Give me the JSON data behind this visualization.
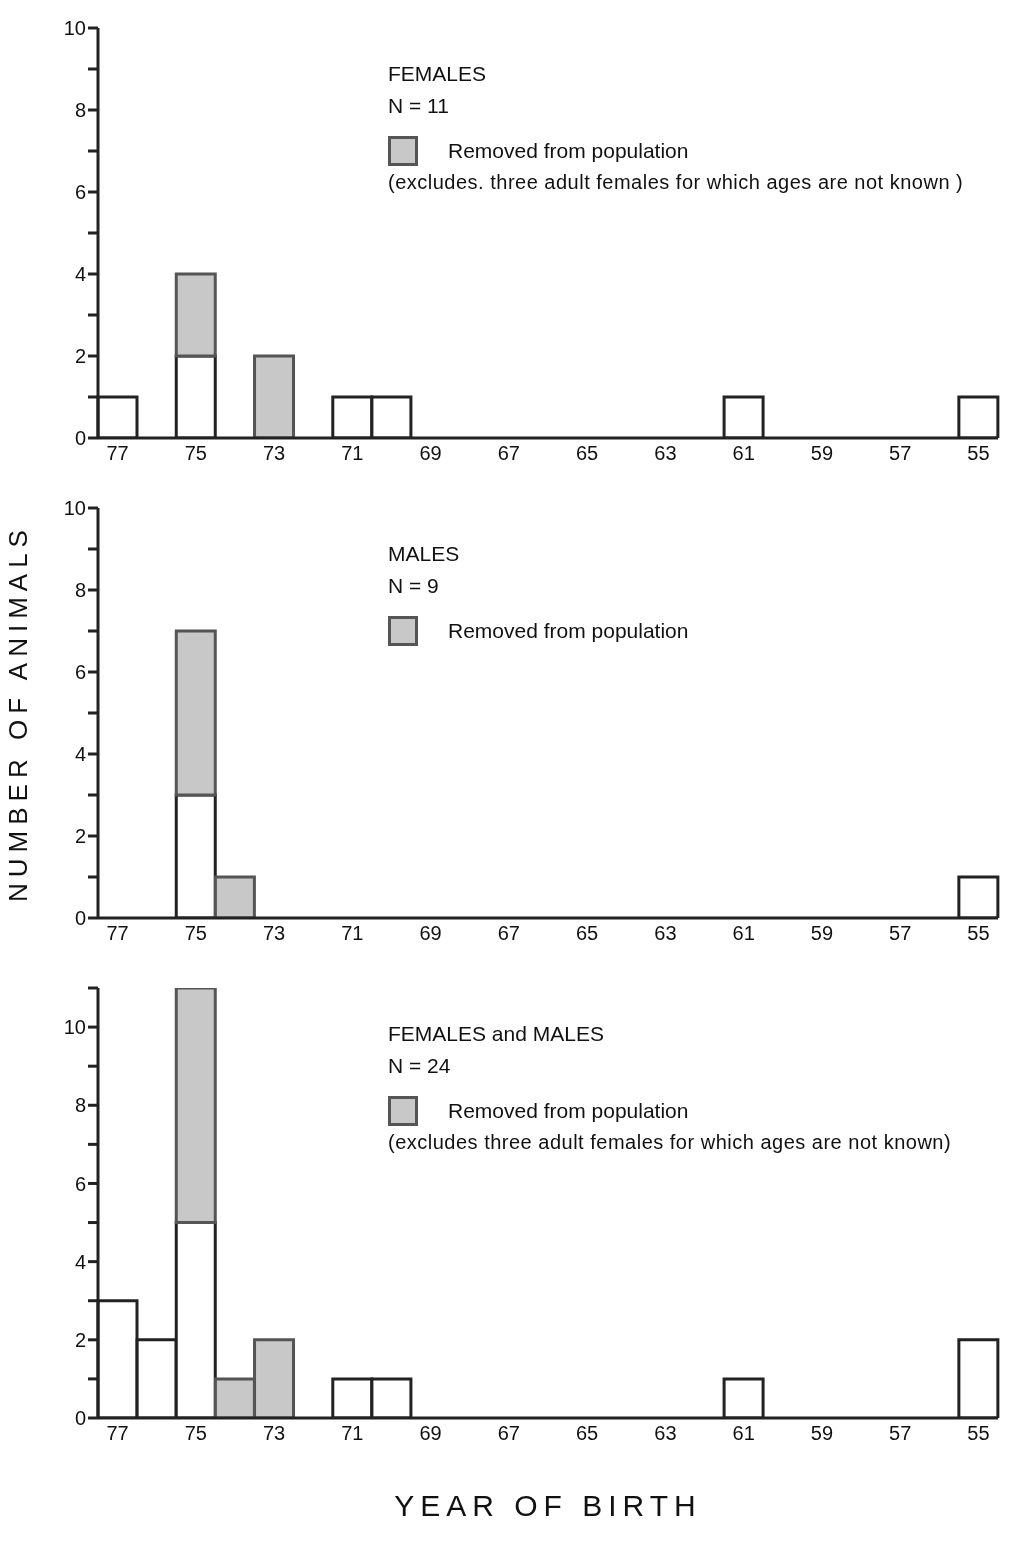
{
  "chart_data": [
    {
      "type": "bar",
      "title": "FEMALES",
      "subtitle": "N = 11",
      "stacked": true,
      "legend": "top",
      "categories": [
        "77",
        null,
        "75",
        null,
        "73",
        null,
        "71",
        null,
        "69",
        null,
        "67",
        null,
        "65",
        null,
        "63",
        null,
        "61",
        null,
        "59",
        null,
        "57",
        null,
        "55"
      ],
      "series": [
        {
          "color": "#ffffff",
          "values": [
            1,
            0,
            2,
            0,
            0,
            0,
            1,
            1,
            0,
            0,
            0,
            0,
            0,
            0,
            0,
            0,
            1,
            0,
            0,
            0,
            0,
            0,
            1
          ]
        },
        {
          "name": "Removed from population",
          "color": "#c8c8c8",
          "values": [
            0,
            0,
            2,
            0,
            2,
            0,
            0,
            0,
            0,
            0,
            0,
            0,
            0,
            0,
            0,
            0,
            0,
            0,
            0,
            0,
            0,
            0,
            0
          ]
        }
      ],
      "annotations": [
        "(excludes. three adult females for which ages are not known )"
      ],
      "ylim": [
        0,
        10
      ],
      "yticks": [
        0,
        {
          "value": 1,
          "label": null
        },
        2,
        {
          "value": 3,
          "label": null
        },
        4,
        {
          "value": 5,
          "label": null
        },
        6,
        {
          "value": 7,
          "label": null
        },
        8,
        {
          "value": 9,
          "label": null
        },
        10
      ]
    },
    {
      "type": "bar",
      "title": "MALES",
      "subtitle": "N = 9",
      "stacked": true,
      "legend": "top",
      "ylabel": "NUMBER OF ANIMALS",
      "categories": [
        "77",
        null,
        "75",
        null,
        "73",
        null,
        "71",
        null,
        "69",
        null,
        "67",
        null,
        "65",
        null,
        "63",
        null,
        "61",
        null,
        "59",
        null,
        "57",
        null,
        "55"
      ],
      "series": [
        {
          "color": "#ffffff",
          "values": [
            0,
            0,
            3,
            0,
            0,
            0,
            0,
            0,
            0,
            0,
            0,
            0,
            0,
            0,
            0,
            0,
            0,
            0,
            0,
            0,
            0,
            0,
            1
          ]
        },
        {
          "name": "Removed from population",
          "color": "#c8c8c8",
          "values": [
            0,
            0,
            4,
            1,
            0,
            0,
            0,
            0,
            0,
            0,
            0,
            0,
            0,
            0,
            0,
            0,
            0,
            0,
            0,
            0,
            0,
            0,
            0
          ]
        }
      ],
      "ylim": [
        0,
        10
      ],
      "yticks": [
        0,
        {
          "value": 1,
          "label": null
        },
        2,
        {
          "value": 3,
          "label": null
        },
        4,
        {
          "value": 5,
          "label": null
        },
        6,
        {
          "value": 7,
          "label": null
        },
        8,
        {
          "value": 9,
          "label": null
        },
        10
      ]
    },
    {
      "type": "bar",
      "title": "FEMALES and MALES",
      "subtitle": "N = 24",
      "stacked": true,
      "legend": "top",
      "xlabel": "YEAR OF BIRTH",
      "categories": [
        "77",
        null,
        "75",
        null,
        "73",
        null,
        "71",
        null,
        "69",
        null,
        "67",
        null,
        "65",
        null,
        "63",
        null,
        "61",
        null,
        "59",
        null,
        "57",
        null,
        "55"
      ],
      "series": [
        {
          "color": "#ffffff",
          "values": [
            3,
            2,
            5,
            0,
            0,
            0,
            1,
            1,
            0,
            0,
            0,
            0,
            0,
            0,
            0,
            0,
            1,
            0,
            0,
            0,
            0,
            0,
            2
          ]
        },
        {
          "name": "Removed from population",
          "color": "#c8c8c8",
          "values": [
            0,
            0,
            6,
            1,
            2,
            0,
            0,
            0,
            0,
            0,
            0,
            0,
            0,
            0,
            0,
            0,
            0,
            0,
            0,
            0,
            0,
            0,
            0
          ]
        }
      ],
      "annotations": [
        "(excludes three adult females for which ages are not known)"
      ],
      "ylim": [
        0,
        11
      ],
      "yticks": [
        0,
        {
          "value": 1,
          "label": null
        },
        2,
        {
          "value": 3,
          "label": null
        },
        4,
        {
          "value": 5,
          "label": null
        },
        6,
        {
          "value": 7,
          "label": null
        },
        8,
        {
          "value": 9,
          "label": null
        },
        10,
        {
          "value": 11,
          "label": null
        }
      ]
    }
  ]
}
